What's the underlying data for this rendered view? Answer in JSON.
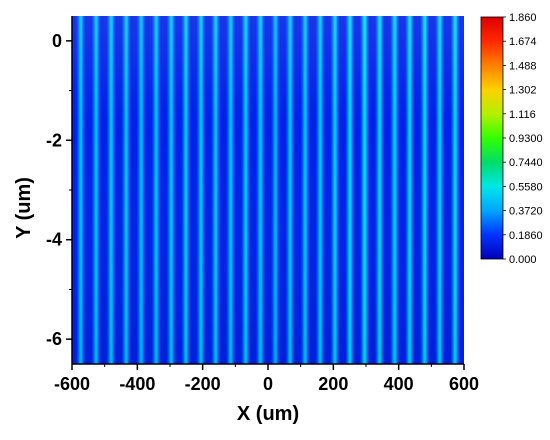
{
  "chart_data": {
    "type": "heatmap",
    "xlabel": "X (um)",
    "ylabel": "Y (um)",
    "xlim": [
      -600,
      600
    ],
    "ylim": [
      -6.5,
      0.5
    ],
    "x_ticks": [
      -600,
      -400,
      -200,
      0,
      200,
      400,
      600
    ],
    "x_tick_labels": [
      "-600",
      "-400",
      "-200",
      "0",
      "200",
      "400",
      "600"
    ],
    "y_ticks": [
      0,
      -2,
      -4,
      -6
    ],
    "y_tick_labels": [
      "0",
      "-2",
      "-4",
      "-6"
    ],
    "colorbar": {
      "min": 0.0,
      "max": 1.86,
      "ticks": [
        1.86,
        1.674,
        1.488,
        1.302,
        1.116,
        0.93,
        0.744,
        0.558,
        0.372,
        0.186,
        0.0
      ],
      "tick_labels": [
        "1.860",
        "1.674",
        "1.488",
        "1.302",
        "1.116",
        "0.9300",
        "0.7440",
        "0.5580",
        "0.3720",
        "0.1860",
        "0.000"
      ],
      "colormap": "rainbow",
      "colors": [
        "#0000b8",
        "#0033ff",
        "#00a6ff",
        "#00e6e6",
        "#00dd66",
        "#33ff00",
        "#b3f000",
        "#ffd000",
        "#ff8000",
        "#ff2800",
        "#dd0000"
      ]
    },
    "stripes": {
      "description": "vertical bright stripes of intensity in X",
      "x_centers": [
        -573,
        -526,
        -480,
        -434,
        -388,
        -342,
        -296,
        -251,
        -205,
        -160,
        -114,
        -68,
        -23,
        23,
        68,
        114,
        160,
        205,
        251,
        296,
        342,
        388,
        434,
        480,
        526,
        573
      ],
      "peak_values": [
        0.43,
        0.44,
        0.45,
        0.45,
        0.42,
        0.44,
        0.45,
        0.46,
        0.45,
        0.45,
        0.44,
        0.46,
        0.45,
        0.4,
        0.45,
        0.44,
        0.45,
        0.47,
        0.5,
        0.52,
        0.5,
        0.48,
        0.5,
        0.5,
        0.48,
        0.5
      ],
      "background_value": 0.12
    }
  }
}
